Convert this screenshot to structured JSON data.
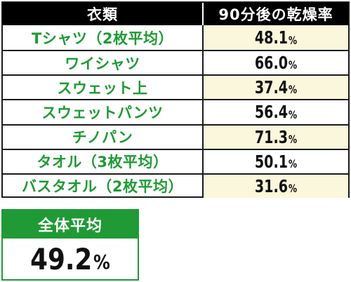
{
  "table": {
    "header": {
      "clothing": "衣類",
      "dryness": "90分後の乾燥率"
    },
    "rows": [
      {
        "name": "Tシャツ（2枚平均）",
        "value": "48.1",
        "unit": "%"
      },
      {
        "name": "ワイシャツ",
        "value": "66.0",
        "unit": "%"
      },
      {
        "name": "スウェット上",
        "value": "37.4",
        "unit": "%"
      },
      {
        "name": "スウェットパンツ",
        "value": "56.4",
        "unit": "%"
      },
      {
        "name": "チノパン",
        "value": "71.3",
        "unit": "%"
      },
      {
        "name": "タオル（3枚平均）",
        "value": "50.1",
        "unit": "%"
      },
      {
        "name": "バスタオル（2枚平均）",
        "value": "31.6",
        "unit": "%"
      }
    ]
  },
  "average": {
    "label": "全体平均",
    "value": "49.2",
    "unit": "%"
  },
  "colors": {
    "accent_green": "#1f9a35",
    "header_black": "#000000",
    "row_tint": "#fbf7dc"
  }
}
